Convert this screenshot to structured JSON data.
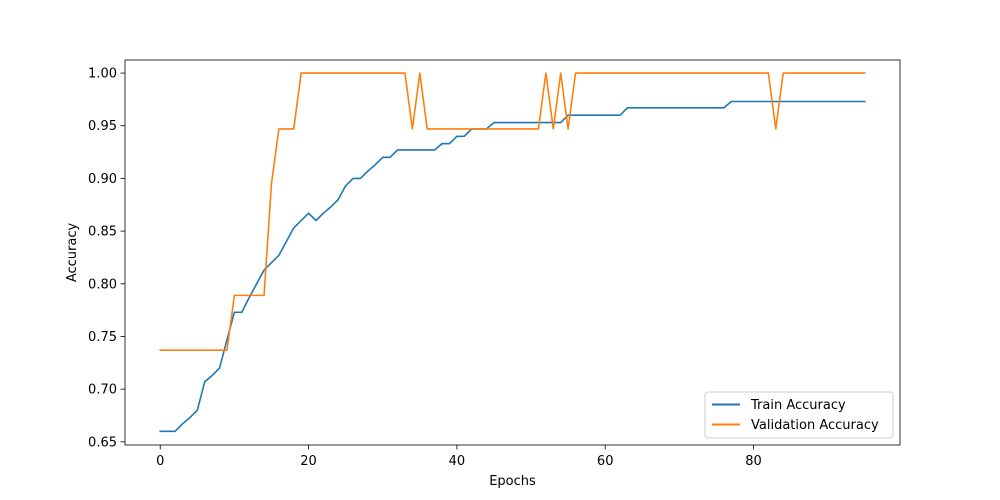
{
  "chart_data": {
    "type": "line",
    "title": "",
    "xlabel": "Epochs",
    "ylabel": "Accuracy",
    "xlim": [
      -4.75,
      99.75
    ],
    "ylim": [
      0.647,
      1.0124
    ],
    "x_ticks": [
      0,
      20,
      40,
      60,
      80
    ],
    "y_ticks": [
      0.65,
      0.7,
      0.75,
      0.8,
      0.85,
      0.9,
      0.95,
      1.0
    ],
    "y_tick_labels": [
      "0.65",
      "0.70",
      "0.75",
      "0.80",
      "0.85",
      "0.90",
      "0.95",
      "1.00"
    ],
    "legend_position": "lower-right",
    "grid": false,
    "colors": {
      "train": "#1f77b4",
      "validation": "#ff7f0e"
    },
    "series": [
      {
        "name": "Train Accuracy",
        "color": "#1f77b4",
        "values": [
          0.66,
          0.66,
          0.66,
          0.667,
          0.673,
          0.68,
          0.707,
          0.713,
          0.72,
          0.747,
          0.773,
          0.773,
          0.787,
          0.8,
          0.813,
          0.82,
          0.827,
          0.84,
          0.853,
          0.86,
          0.867,
          0.86,
          0.867,
          0.873,
          0.88,
          0.893,
          0.9,
          0.9,
          0.907,
          0.913,
          0.92,
          0.92,
          0.927,
          0.927,
          0.927,
          0.927,
          0.927,
          0.927,
          0.933,
          0.933,
          0.94,
          0.94,
          0.947,
          0.947,
          0.947,
          0.953,
          0.953,
          0.953,
          0.953,
          0.953,
          0.953,
          0.953,
          0.953,
          0.953,
          0.953,
          0.96,
          0.96,
          0.96,
          0.96,
          0.96,
          0.96,
          0.96,
          0.96,
          0.967,
          0.967,
          0.967,
          0.967,
          0.967,
          0.967,
          0.967,
          0.967,
          0.967,
          0.967,
          0.967,
          0.967,
          0.967,
          0.967,
          0.973,
          0.973,
          0.973,
          0.973,
          0.973,
          0.973,
          0.973,
          0.973,
          0.973,
          0.973,
          0.973,
          0.973,
          0.973,
          0.973,
          0.973,
          0.973,
          0.973,
          0.973,
          0.973
        ]
      },
      {
        "name": "Validation Accuracy",
        "color": "#ff7f0e",
        "values": [
          0.737,
          0.737,
          0.737,
          0.737,
          0.737,
          0.737,
          0.737,
          0.737,
          0.737,
          0.737,
          0.789,
          0.789,
          0.789,
          0.789,
          0.789,
          0.895,
          0.947,
          0.947,
          0.947,
          1.0,
          1.0,
          1.0,
          1.0,
          1.0,
          1.0,
          1.0,
          1.0,
          1.0,
          1.0,
          1.0,
          1.0,
          1.0,
          1.0,
          1.0,
          0.947,
          1.0,
          0.947,
          0.947,
          0.947,
          0.947,
          0.947,
          0.947,
          0.947,
          0.947,
          0.947,
          0.947,
          0.947,
          0.947,
          0.947,
          0.947,
          0.947,
          0.947,
          1.0,
          0.947,
          1.0,
          0.947,
          1.0,
          1.0,
          1.0,
          1.0,
          1.0,
          1.0,
          1.0,
          1.0,
          1.0,
          1.0,
          1.0,
          1.0,
          1.0,
          1.0,
          1.0,
          1.0,
          1.0,
          1.0,
          1.0,
          1.0,
          1.0,
          1.0,
          1.0,
          1.0,
          1.0,
          1.0,
          1.0,
          0.947,
          1.0,
          1.0,
          1.0,
          1.0,
          1.0,
          1.0,
          1.0,
          1.0,
          1.0,
          1.0,
          1.0,
          1.0
        ]
      }
    ]
  }
}
